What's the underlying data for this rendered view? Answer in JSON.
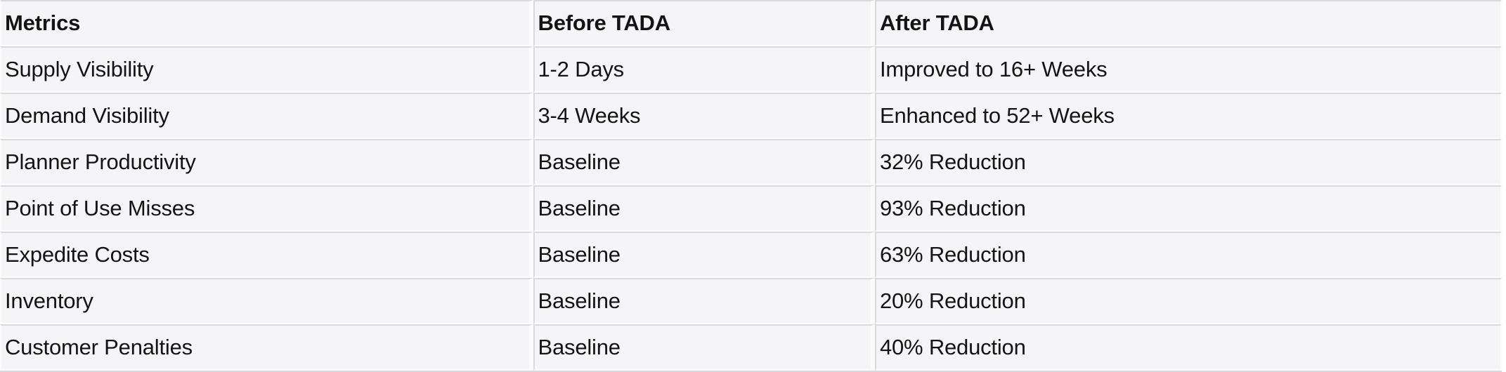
{
  "chart_data": {
    "type": "table",
    "columns": [
      "Metrics",
      "Before TADA",
      "After TADA"
    ],
    "rows": [
      [
        "Supply Visibility",
        "1-2 Days",
        "Improved to 16+ Weeks"
      ],
      [
        "Demand Visibility",
        "3-4 Weeks",
        "Enhanced to 52+ Weeks"
      ],
      [
        "Planner Productivity",
        "Baseline",
        "32% Reduction"
      ],
      [
        "Point of Use Misses",
        "Baseline",
        "93% Reduction"
      ],
      [
        "Expedite Costs",
        "Baseline",
        "63% Reduction"
      ],
      [
        "Inventory",
        "Baseline",
        "20% Reduction"
      ],
      [
        "Customer Penalties",
        "Baseline",
        "40% Reduction"
      ]
    ],
    "title": "",
    "legend": null,
    "grid": "row-and-column-separators"
  },
  "colors": {
    "cell_bg": "#f5f5f7",
    "separator": "#d9d9de",
    "gap": "#fcfcfd",
    "text": "#141414",
    "page_bg": "#ffffff"
  }
}
